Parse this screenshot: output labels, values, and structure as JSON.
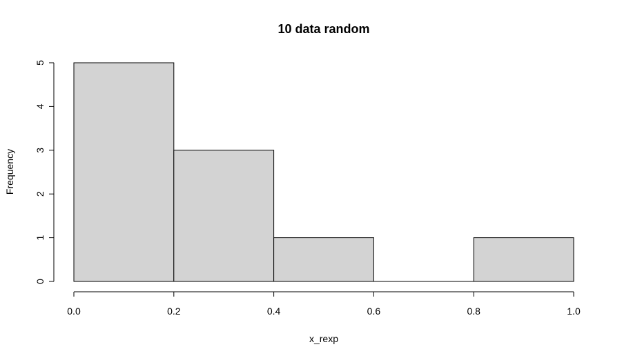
{
  "chart_data": {
    "type": "bar",
    "title": "10 data random",
    "xlabel": "x_rexp",
    "ylabel": "Frequency",
    "bins": [
      {
        "from": 0.0,
        "to": 0.2,
        "count": 5
      },
      {
        "from": 0.2,
        "to": 0.4,
        "count": 3
      },
      {
        "from": 0.4,
        "to": 0.6,
        "count": 1
      },
      {
        "from": 0.6,
        "to": 0.8,
        "count": 0
      },
      {
        "from": 0.8,
        "to": 1.0,
        "count": 1
      }
    ],
    "xlim": [
      0.0,
      1.0
    ],
    "ylim": [
      0,
      5
    ],
    "x_ticks": [
      "0.0",
      "0.2",
      "0.4",
      "0.6",
      "0.8",
      "1.0"
    ],
    "y_ticks": [
      "0",
      "1",
      "2",
      "3",
      "4",
      "5"
    ],
    "bar_fill": "#d3d3d3",
    "bar_stroke": "#000000",
    "grid": false,
    "legend": "none"
  }
}
